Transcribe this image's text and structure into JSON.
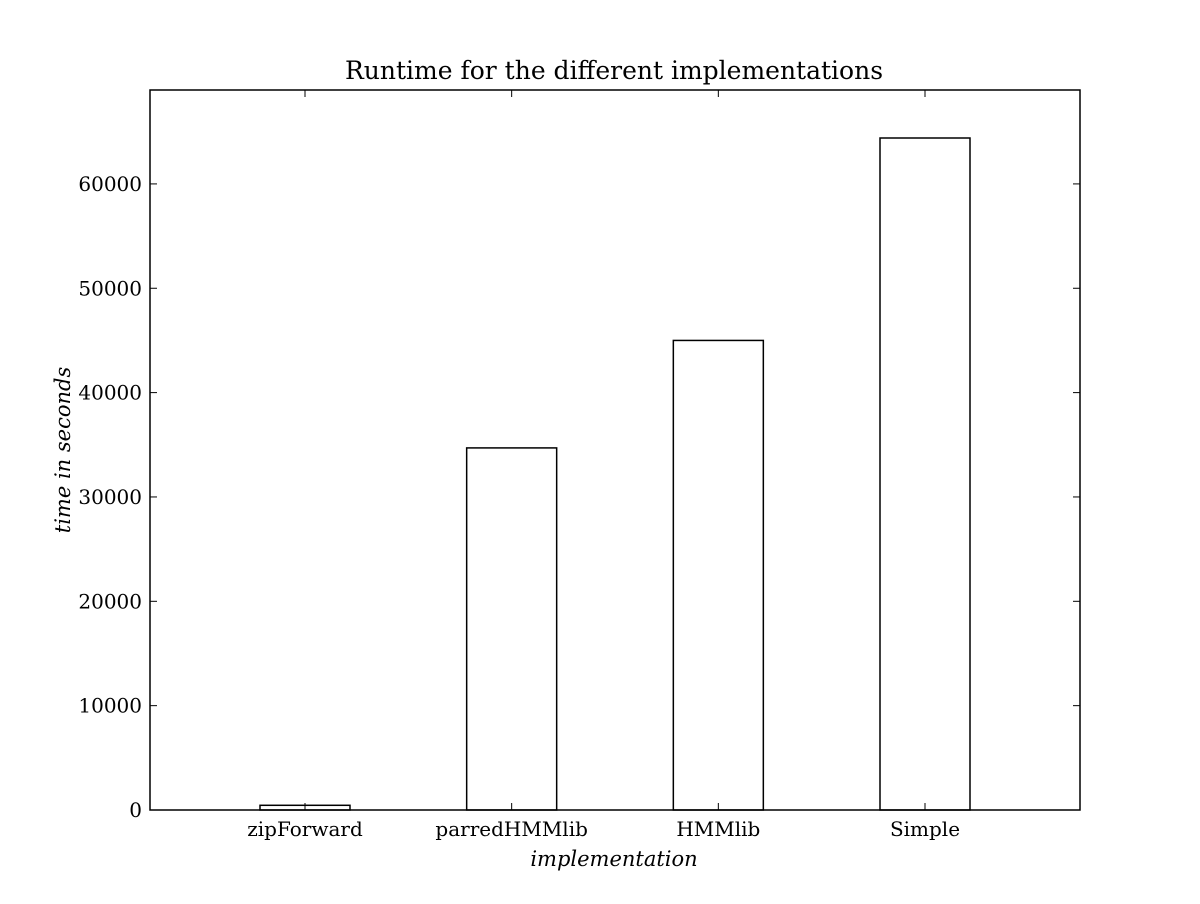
{
  "chart_data": {
    "type": "bar",
    "title": "Runtime for the different implementations",
    "xlabel": "implementation",
    "ylabel": "time in seconds",
    "categories": [
      "zipForward",
      "parredHMMlib",
      "HMMlib",
      "Simple"
    ],
    "values": [
      450,
      34700,
      45000,
      64400
    ],
    "ylim": [
      0,
      69000
    ],
    "yticks": [
      0,
      10000,
      20000,
      30000,
      40000,
      50000,
      60000
    ],
    "ytick_labels": [
      "0",
      "10000",
      "20000",
      "30000",
      "40000",
      "50000",
      "60000"
    ],
    "grid": false,
    "legend": "none",
    "colors": {
      "bar_fill": "#ffffff",
      "bar_stroke": "#000000",
      "axes": "#000000"
    }
  }
}
